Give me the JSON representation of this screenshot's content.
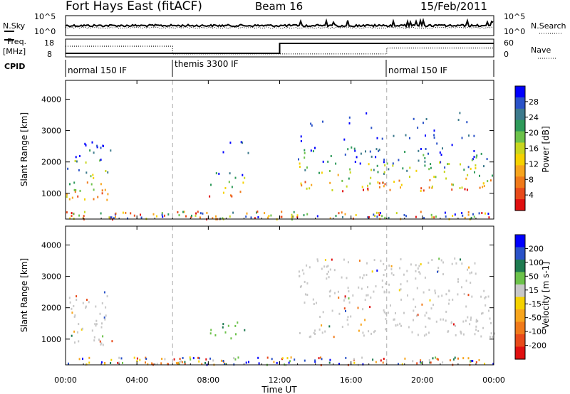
{
  "header": {
    "site": "Fort Hays East (fitACF)",
    "beam": "Beam 16",
    "date": "15/Feb/2011"
  },
  "status_panels": {
    "nsky_label": "N.Sky",
    "nsearch_label": "N.Search",
    "freq_label_1": "Freq.",
    "freq_label_2": "[MHz]",
    "nave_label": "Nave",
    "cpid_label": "CPID",
    "noise_ticks": [
      "10^5",
      "10^0"
    ],
    "freq_ticks": [
      "18",
      "8"
    ],
    "nave_ticks": [
      "60",
      "0"
    ],
    "cpid_segments": [
      {
        "label": "normal 150 IF",
        "start_h": 0,
        "end_h": 6
      },
      {
        "label": "themis 3300 IF",
        "start_h": 6,
        "end_h": 18
      },
      {
        "label": "normal 150 IF",
        "start_h": 18,
        "end_h": 24
      }
    ]
  },
  "power_colorbar": {
    "label": "Power [dB]",
    "ticks": [
      "28",
      "24",
      "20",
      "16",
      "12",
      "8",
      "4"
    ],
    "colors": [
      "#0000ff",
      "#2a52c8",
      "#3c7a8c",
      "#2e9a5a",
      "#6cc24a",
      "#c8d61e",
      "#f5d200",
      "#f7a51d",
      "#f07a1a",
      "#e84a1a",
      "#e01010"
    ]
  },
  "velocity_colorbar": {
    "label": "Velocity [m s-1]",
    "ticks": [
      "200",
      "100",
      "50",
      "15",
      "-15",
      "-50",
      "-100",
      "-200"
    ],
    "colors": [
      "#0000ff",
      "#2a52c8",
      "#1e7a50",
      "#6cc24a",
      "#c8c8c8",
      "#f5d200",
      "#f7a51d",
      "#f07a1a",
      "#e84a1a",
      "#e01010"
    ]
  },
  "x_axis": {
    "label": "Time UT",
    "ticks": [
      "00:00",
      "04:00",
      "08:00",
      "12:00",
      "16:00",
      "20:00",
      "00:00"
    ]
  },
  "chart_data": [
    {
      "type": "heatmap",
      "panel": "power",
      "ylabel": "Slant Range [km]",
      "y_ticks": [
        1000,
        2000,
        3000,
        4000
      ],
      "ylim": [
        180,
        4600
      ],
      "xlim_hours": [
        0,
        24
      ],
      "dashed_lines_hours": [
        6,
        18
      ],
      "regions": [
        {
          "t0": 0.0,
          "t1": 2.6,
          "r0": 800,
          "r1": 2700,
          "level": "mixed"
        },
        {
          "t0": 8.0,
          "t1": 10.0,
          "r0": 900,
          "r1": 1700,
          "level": "mixed"
        },
        {
          "t0": 13.0,
          "t1": 24.0,
          "r0": 1100,
          "r1": 2500,
          "level": "mixed"
        },
        {
          "t0": 7.5,
          "t1": 10.5,
          "r0": 2200,
          "r1": 2800,
          "level": "low"
        },
        {
          "t0": 13.0,
          "t1": 23.0,
          "r0": 2500,
          "r1": 3600,
          "level": "low"
        }
      ]
    },
    {
      "type": "heatmap",
      "panel": "velocity",
      "ylabel": "Slant Range [km]",
      "y_ticks": [
        1000,
        2000,
        3000,
        4000
      ],
      "ylim": [
        180,
        4600
      ],
      "xlim_hours": [
        0,
        24
      ],
      "dashed_lines_hours": [
        6,
        18
      ],
      "regions": [
        {
          "t0": 0.0,
          "t1": 2.6,
          "r0": 800,
          "r1": 2600,
          "level": "gray"
        },
        {
          "t0": 8.0,
          "t1": 10.0,
          "r0": 1000,
          "r1": 1600,
          "level": "green"
        },
        {
          "t0": 13.0,
          "t1": 24.0,
          "r0": 1100,
          "r1": 2600,
          "level": "gray"
        },
        {
          "t0": 13.0,
          "t1": 23.0,
          "r0": 2600,
          "r1": 3600,
          "level": "gray"
        }
      ]
    }
  ]
}
